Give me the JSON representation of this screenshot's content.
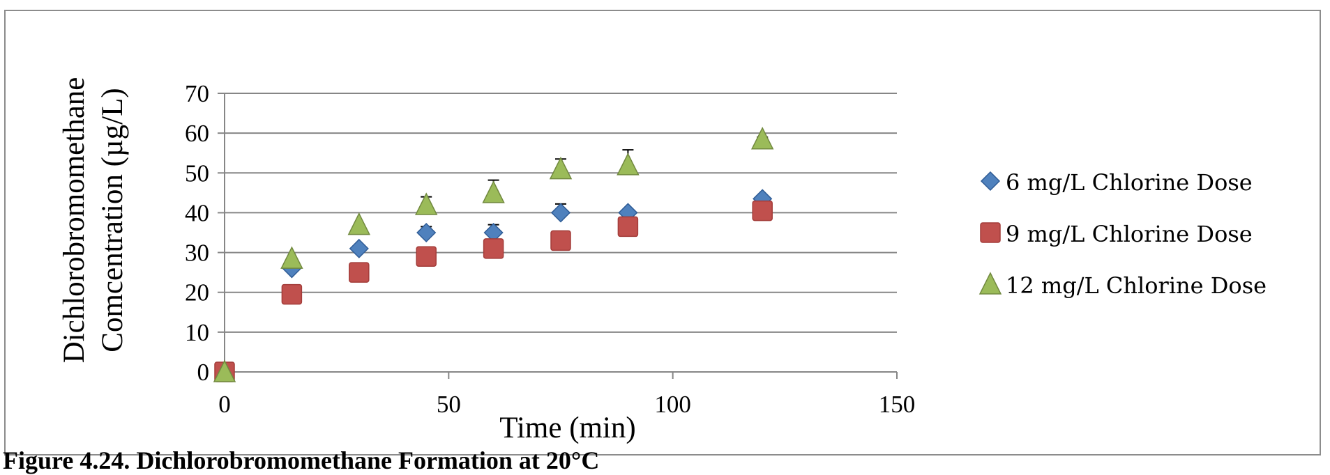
{
  "chart_data": {
    "type": "scatter",
    "title": "",
    "xlabel": "Time (min)",
    "ylabel_lines": [
      "Dichlorobromomethane",
      "Comcentration (µg/L)"
    ],
    "xlim": [
      0,
      150
    ],
    "ylim": [
      0,
      70
    ],
    "x_ticks": [
      0,
      50,
      100,
      150
    ],
    "y_ticks": [
      0,
      10,
      20,
      30,
      40,
      50,
      60,
      70
    ],
    "grid": "horizontal",
    "legend_position": "right",
    "series": [
      {
        "name": "6 mg/L Chlorine Dose",
        "marker": "diamond",
        "color": "#4f81bd",
        "x": [
          0,
          15,
          30,
          45,
          60,
          75,
          90,
          120
        ],
        "y": [
          0,
          26,
          31,
          35,
          35,
          40,
          40,
          43.5
        ],
        "err": [
          0,
          0,
          0,
          1.5,
          2,
          2.2,
          0.5,
          0
        ]
      },
      {
        "name": "9 mg/L Chlorine Dose",
        "marker": "square",
        "color": "#c0504d",
        "x": [
          0,
          15,
          30,
          45,
          60,
          75,
          90,
          120
        ],
        "y": [
          0,
          19.5,
          25,
          29,
          31,
          33,
          36.5,
          40.5
        ],
        "err": [
          0,
          0,
          0,
          0,
          0,
          0,
          0,
          0
        ]
      },
      {
        "name": "12 mg/L Chlorine Dose",
        "marker": "triangle",
        "color": "#9bbb59",
        "x": [
          0,
          15,
          30,
          45,
          60,
          75,
          90,
          120
        ],
        "y": [
          0,
          28.5,
          37,
          42,
          45,
          51,
          52,
          58.5
        ],
        "err": [
          0,
          0,
          0,
          2,
          3.2,
          2.5,
          3.8,
          0.5
        ]
      }
    ]
  },
  "caption": "Figure 4.24. Dichlorobromomethane Formation at 20°C"
}
